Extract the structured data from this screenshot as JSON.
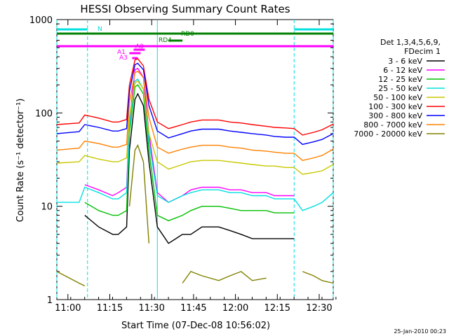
{
  "chart_data": {
    "type": "line",
    "title": "HESSI Observing Summary Count Rates",
    "xlabel": "Start Time (07-Dec-08 10:56:02)",
    "ylabel": "Count Rate (s⁻¹ detector⁻¹)",
    "y_scale": "log",
    "ylim": [
      1,
      1000
    ],
    "xlim_minutes_from_start": [
      0,
      99
    ],
    "x_ticks": [
      "11:00",
      "11:15",
      "11:30",
      "11:45",
      "12:00",
      "12:15",
      "12:30"
    ],
    "y_ticks": [
      "1",
      "10",
      "100",
      "1000"
    ],
    "legend_title": [
      "Det 1,3,4,5,6,9,",
      "FDecim 1"
    ],
    "legend_position": "right",
    "timestamp": "25-Jan-2010 00:23",
    "flags": [
      {
        "label": "N",
        "color": "#00e0e0",
        "segments": [
          [
            0,
            11
          ],
          [
            85,
            99
          ]
        ]
      },
      {
        "label": "RD0",
        "color": "#008000",
        "segments": [
          [
            0,
            99
          ]
        ]
      },
      {
        "label": "RD4",
        "color": "#008000",
        "segments": [
          [
            40,
            45
          ]
        ]
      },
      {
        "label": "A0",
        "color": "#ff00ff",
        "segments": [
          [
            27.5,
            31.5
          ]
        ]
      },
      {
        "label": "A1",
        "color": "#ff00ff",
        "segments": [
          [
            26,
            30
          ]
        ]
      },
      {
        "label": "A3",
        "color": "#ff00ff",
        "segments": [
          [
            27,
            29
          ]
        ]
      },
      {
        "label": "",
        "color": "#ff00ff",
        "segments": [
          [
            0,
            99
          ]
        ]
      }
    ],
    "marker_lines": [
      0,
      11,
      36,
      85,
      99
    ],
    "series": [
      {
        "name": "3 - 6 keV",
        "color": "#000000",
        "x": [
          0,
          8,
          10,
          15,
          20,
          22,
          25,
          26,
          28,
          29,
          31,
          33,
          36,
          40,
          45,
          48,
          52,
          58,
          62,
          66,
          70,
          75,
          78,
          82,
          85,
          88,
          92,
          95,
          99
        ],
        "values": [
          null,
          null,
          8,
          6,
          5,
          5,
          6,
          40,
          140,
          160,
          120,
          30,
          6,
          4,
          5,
          5,
          6,
          6,
          5.5,
          5,
          4.5,
          4.5,
          4.5,
          4.5,
          4.5,
          null,
          null,
          null,
          null
        ]
      },
      {
        "name": "6 - 12 keV",
        "color": "#ff00ff",
        "x": [
          0,
          8,
          10,
          15,
          20,
          22,
          25,
          26,
          28,
          29,
          31,
          33,
          36,
          40,
          45,
          48,
          52,
          58,
          62,
          66,
          70,
          75,
          78,
          82,
          85,
          88,
          92,
          95,
          99
        ],
        "values": [
          null,
          null,
          17,
          15,
          13,
          14,
          16,
          80,
          290,
          300,
          240,
          60,
          14,
          11,
          13,
          15,
          16,
          16,
          15,
          15,
          14,
          14,
          13,
          13,
          13,
          null,
          null,
          null,
          null
        ]
      },
      {
        "name": "12 - 25 keV",
        "color": "#00c000",
        "x": [
          0,
          8,
          10,
          15,
          20,
          22,
          25,
          26,
          28,
          29,
          31,
          33,
          36,
          40,
          45,
          48,
          52,
          58,
          62,
          66,
          70,
          75,
          78,
          82,
          85,
          88,
          92,
          95,
          99
        ],
        "values": [
          null,
          null,
          11,
          9,
          8,
          8,
          9,
          60,
          190,
          200,
          160,
          40,
          8,
          7,
          8,
          9,
          10,
          10,
          9.5,
          9,
          9,
          9,
          8.5,
          8.5,
          8.5,
          null,
          null,
          null,
          null
        ]
      },
      {
        "name": "25 - 50 keV",
        "color": "#00e0e0",
        "x": [
          0,
          8,
          10,
          15,
          20,
          22,
          25,
          26,
          28,
          29,
          31,
          33,
          36,
          40,
          45,
          48,
          52,
          58,
          62,
          66,
          70,
          75,
          78,
          82,
          85,
          88,
          92,
          95,
          99
        ],
        "values": [
          11,
          11,
          16,
          14,
          12,
          12,
          14,
          70,
          220,
          230,
          180,
          50,
          13,
          11,
          13,
          14,
          15,
          15,
          14,
          14,
          13,
          13,
          12,
          12,
          12,
          9,
          10,
          11,
          14
        ]
      },
      {
        "name": "50 - 100 keV",
        "color": "#c8c800",
        "x": [
          0,
          8,
          10,
          15,
          20,
          22,
          25,
          26,
          28,
          29,
          31,
          33,
          36,
          40,
          45,
          48,
          52,
          58,
          62,
          66,
          70,
          75,
          78,
          82,
          85,
          88,
          92,
          95,
          99
        ],
        "values": [
          29,
          30,
          35,
          32,
          30,
          30,
          33,
          90,
          210,
          220,
          180,
          60,
          30,
          25,
          28,
          30,
          31,
          31,
          30,
          29,
          28,
          27,
          27,
          26,
          26,
          22,
          23,
          24,
          28
        ]
      },
      {
        "name": "100 - 300 keV",
        "color": "#ff0000",
        "x": [
          0,
          8,
          10,
          15,
          20,
          22,
          25,
          26,
          28,
          29,
          31,
          33,
          36,
          40,
          45,
          48,
          52,
          58,
          62,
          66,
          70,
          75,
          78,
          82,
          85,
          88,
          92,
          95,
          99
        ],
        "values": [
          75,
          78,
          95,
          88,
          80,
          80,
          85,
          200,
          370,
          380,
          320,
          140,
          80,
          68,
          75,
          80,
          84,
          84,
          80,
          78,
          75,
          72,
          70,
          69,
          68,
          58,
          62,
          66,
          76
        ]
      },
      {
        "name": "300 - 800 keV",
        "color": "#0000ff",
        "x": [
          0,
          8,
          10,
          15,
          20,
          22,
          25,
          26,
          28,
          29,
          31,
          33,
          36,
          40,
          45,
          48,
          52,
          58,
          62,
          66,
          70,
          75,
          78,
          82,
          85,
          88,
          92,
          95,
          99
        ],
        "values": [
          60,
          63,
          75,
          70,
          64,
          64,
          68,
          170,
          330,
          340,
          290,
          120,
          64,
          54,
          60,
          64,
          67,
          67,
          64,
          62,
          60,
          58,
          56,
          55,
          55,
          46,
          49,
          52,
          60
        ]
      },
      {
        "name": "800 - 7000 keV",
        "color": "#ff8000",
        "x": [
          0,
          8,
          10,
          15,
          20,
          22,
          25,
          26,
          28,
          29,
          31,
          33,
          36,
          40,
          45,
          48,
          52,
          58,
          62,
          66,
          70,
          75,
          78,
          82,
          85,
          88,
          92,
          95,
          99
        ],
        "values": [
          40,
          42,
          50,
          47,
          43,
          43,
          46,
          130,
          270,
          280,
          240,
          90,
          43,
          37,
          41,
          43,
          45,
          45,
          43,
          42,
          40,
          39,
          38,
          37,
          37,
          31,
          33,
          35,
          41
        ]
      },
      {
        "name": "7000 - 20000 keV",
        "color": "#808000",
        "x": [
          0,
          8,
          10,
          15,
          20,
          22,
          25,
          26,
          28,
          29,
          31,
          33,
          36,
          40,
          45,
          48,
          52,
          58,
          62,
          66,
          70,
          75,
          78,
          82,
          85,
          88,
          92,
          95,
          99
        ],
        "values": [
          2,
          1.5,
          1.4,
          null,
          null,
          null,
          null,
          10,
          40,
          45,
          30,
          4,
          null,
          null,
          1.5,
          2,
          1.8,
          1.6,
          1.8,
          2,
          1.6,
          1.7,
          null,
          null,
          null,
          2,
          1.8,
          1.6,
          1.5
        ]
      }
    ]
  }
}
